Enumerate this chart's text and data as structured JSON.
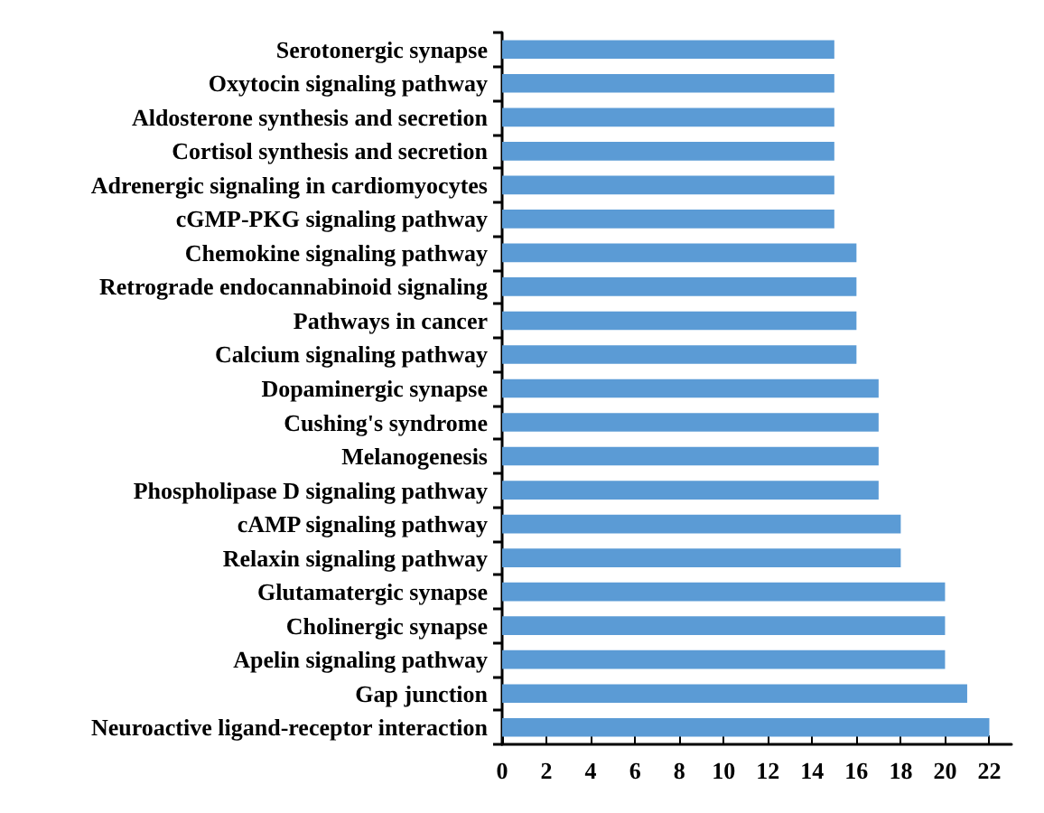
{
  "chart_data": {
    "type": "bar",
    "orientation": "horizontal",
    "categories": [
      "Serotonergic synapse",
      "Oxytocin signaling pathway",
      "Aldosterone synthesis and secretion",
      "Cortisol synthesis and secretion",
      "Adrenergic signaling in cardiomyocytes",
      "cGMP-PKG signaling pathway",
      "Chemokine signaling pathway",
      "Retrograde endocannabinoid signaling",
      "Pathways in cancer",
      "Calcium signaling pathway",
      "Dopaminergic synapse",
      "Cushing's syndrome",
      "Melanogenesis",
      "Phospholipase D signaling pathway",
      "cAMP signaling pathway",
      "Relaxin signaling pathway",
      "Glutamatergic synapse",
      "Cholinergic synapse",
      "Apelin signaling pathway",
      "Gap junction",
      "Neuroactive ligand-receptor interaction"
    ],
    "values": [
      15,
      15,
      15,
      15,
      15,
      15,
      16,
      16,
      16,
      16,
      17,
      17,
      17,
      17,
      18,
      18,
      20,
      20,
      20,
      21,
      22
    ],
    "color": "#5b9bd5",
    "xlim": [
      0,
      23
    ],
    "xticks": [
      0,
      2,
      4,
      6,
      8,
      10,
      12,
      14,
      16,
      18,
      20,
      22
    ]
  }
}
